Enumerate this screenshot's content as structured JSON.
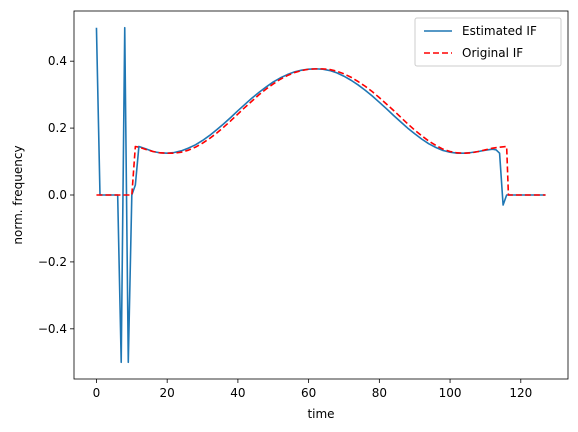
{
  "chart_data": {
    "type": "line",
    "title": "",
    "xlabel": "time",
    "ylabel": "norm. frequency",
    "xlim": [
      -6.35,
      133.35
    ],
    "ylim": [
      -0.55,
      0.55
    ],
    "xticks": [
      0,
      20,
      40,
      60,
      80,
      100,
      120
    ],
    "yticks": [
      -0.4,
      -0.2,
      0.0,
      0.2,
      0.4
    ],
    "grid": false,
    "legend": "top-right",
    "series": [
      {
        "name": "Estimated IF",
        "color": "#1f77b4",
        "style": "solid",
        "points": [
          [
            0,
            0.5
          ],
          [
            1,
            0.0
          ],
          [
            2,
            0.0
          ],
          [
            3,
            0.0
          ],
          [
            4,
            0.0
          ],
          [
            5,
            0.0
          ],
          [
            6,
            0.0
          ],
          [
            7,
            -0.5
          ],
          [
            8,
            0.5
          ],
          [
            9,
            -0.5
          ],
          [
            10,
            0.0
          ],
          [
            11,
            0.03
          ],
          [
            12,
            0.145
          ],
          [
            14,
            0.138
          ],
          [
            16,
            0.13
          ],
          [
            18,
            0.126
          ],
          [
            20,
            0.125
          ],
          [
            22,
            0.127
          ],
          [
            24,
            0.132
          ],
          [
            26,
            0.14
          ],
          [
            28,
            0.15
          ],
          [
            30,
            0.163
          ],
          [
            32,
            0.178
          ],
          [
            34,
            0.195
          ],
          [
            36,
            0.213
          ],
          [
            38,
            0.232
          ],
          [
            40,
            0.252
          ],
          [
            42,
            0.271
          ],
          [
            44,
            0.29
          ],
          [
            46,
            0.307
          ],
          [
            48,
            0.323
          ],
          [
            50,
            0.338
          ],
          [
            52,
            0.35
          ],
          [
            54,
            0.36
          ],
          [
            56,
            0.368
          ],
          [
            58,
            0.373
          ],
          [
            60,
            0.376
          ],
          [
            62,
            0.377
          ],
          [
            64,
            0.376
          ],
          [
            66,
            0.372
          ],
          [
            68,
            0.365
          ],
          [
            70,
            0.355
          ],
          [
            72,
            0.343
          ],
          [
            74,
            0.329
          ],
          [
            76,
            0.313
          ],
          [
            78,
            0.296
          ],
          [
            80,
            0.277
          ],
          [
            82,
            0.258
          ],
          [
            84,
            0.238
          ],
          [
            86,
            0.219
          ],
          [
            88,
            0.2
          ],
          [
            90,
            0.183
          ],
          [
            92,
            0.167
          ],
          [
            94,
            0.153
          ],
          [
            96,
            0.142
          ],
          [
            98,
            0.133
          ],
          [
            100,
            0.128
          ],
          [
            102,
            0.125
          ],
          [
            104,
            0.125
          ],
          [
            106,
            0.127
          ],
          [
            108,
            0.13
          ],
          [
            110,
            0.134
          ],
          [
            112,
            0.137
          ],
          [
            113,
            0.135
          ],
          [
            114,
            0.125
          ],
          [
            115,
            -0.03
          ],
          [
            116,
            0.0
          ],
          [
            117,
            0.0
          ],
          [
            120,
            0.0
          ],
          [
            127,
            0.0
          ]
        ]
      },
      {
        "name": "Original IF",
        "color": "#ff0000",
        "style": "dashed",
        "points": [
          [
            0,
            0.0
          ],
          [
            10,
            0.0
          ],
          [
            11,
            0.145
          ],
          [
            12,
            0.143
          ],
          [
            14,
            0.136
          ],
          [
            16,
            0.13
          ],
          [
            18,
            0.126
          ],
          [
            20,
            0.125
          ],
          [
            22,
            0.125
          ],
          [
            24,
            0.128
          ],
          [
            26,
            0.134
          ],
          [
            28,
            0.143
          ],
          [
            30,
            0.155
          ],
          [
            32,
            0.169
          ],
          [
            34,
            0.185
          ],
          [
            36,
            0.203
          ],
          [
            38,
            0.222
          ],
          [
            40,
            0.242
          ],
          [
            42,
            0.262
          ],
          [
            44,
            0.281
          ],
          [
            46,
            0.3
          ],
          [
            48,
            0.317
          ],
          [
            50,
            0.332
          ],
          [
            52,
            0.346
          ],
          [
            54,
            0.357
          ],
          [
            56,
            0.366
          ],
          [
            58,
            0.372
          ],
          [
            60,
            0.376
          ],
          [
            62,
            0.377
          ],
          [
            64,
            0.377
          ],
          [
            66,
            0.375
          ],
          [
            68,
            0.37
          ],
          [
            70,
            0.362
          ],
          [
            72,
            0.352
          ],
          [
            74,
            0.339
          ],
          [
            76,
            0.325
          ],
          [
            78,
            0.309
          ],
          [
            80,
            0.291
          ],
          [
            82,
            0.272
          ],
          [
            84,
            0.253
          ],
          [
            86,
            0.233
          ],
          [
            88,
            0.213
          ],
          [
            90,
            0.194
          ],
          [
            92,
            0.177
          ],
          [
            94,
            0.161
          ],
          [
            96,
            0.148
          ],
          [
            98,
            0.137
          ],
          [
            100,
            0.13
          ],
          [
            102,
            0.126
          ],
          [
            104,
            0.125
          ],
          [
            106,
            0.126
          ],
          [
            108,
            0.13
          ],
          [
            110,
            0.135
          ],
          [
            112,
            0.14
          ],
          [
            114,
            0.143
          ],
          [
            116,
            0.145
          ],
          [
            116.5,
            0.0
          ],
          [
            120,
            0.0
          ],
          [
            127,
            0.0
          ]
        ]
      }
    ]
  }
}
